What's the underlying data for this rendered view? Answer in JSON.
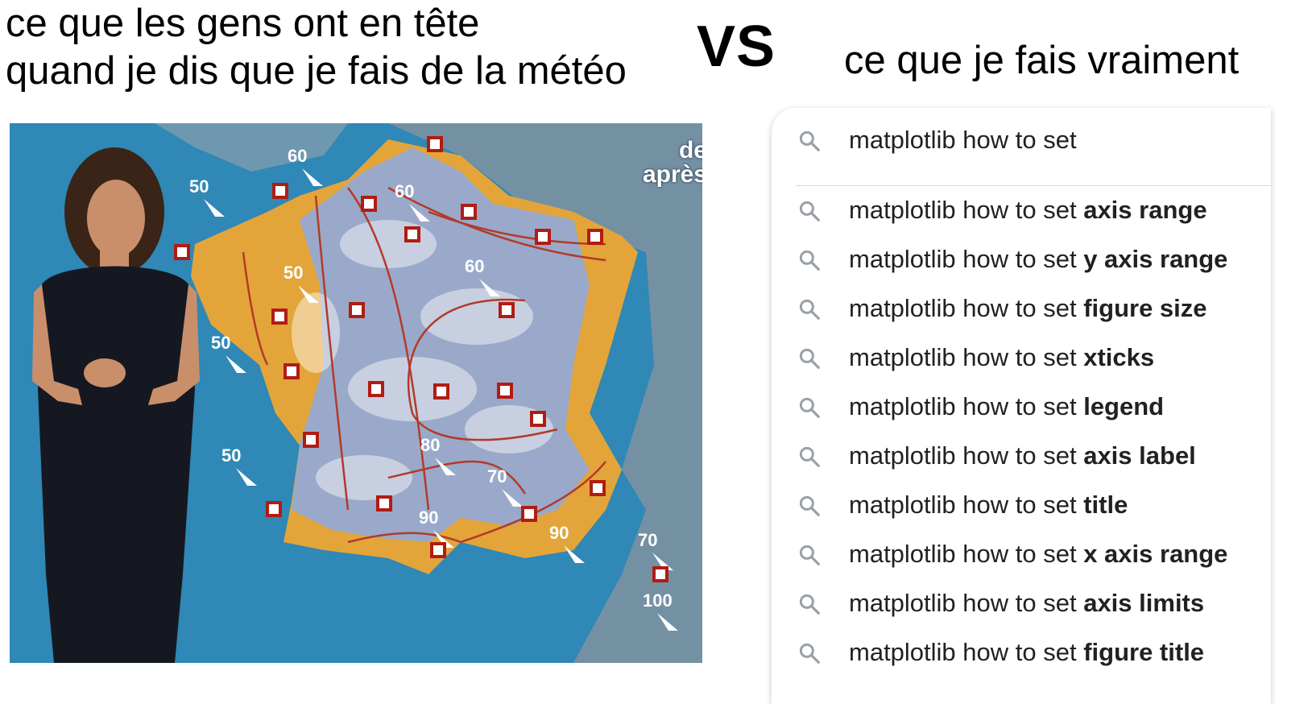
{
  "captions": {
    "left_line1": "ce que les gens ont en tête",
    "left_line2": "quand je dis que je fais de la météo",
    "vs": "VS",
    "right": "ce que je fais vraiment"
  },
  "weather_map": {
    "corner_line1": "de",
    "corner_line2": "après",
    "wind_speeds": [
      "60",
      "50",
      "60",
      "50",
      "60",
      "50",
      "50",
      "80",
      "70",
      "90",
      "90",
      "70",
      "100"
    ],
    "colors": {
      "sea": "#2f88b6",
      "land_warm": "#e3a53a",
      "land_cold": "#9aa9c9",
      "isoline": "#b33a2a"
    }
  },
  "search": {
    "query": "matplotlib how to set",
    "suggestions": [
      {
        "prefix": "matplotlib how to set ",
        "completion": "axis range"
      },
      {
        "prefix": "matplotlib how to set ",
        "completion": "y axis range"
      },
      {
        "prefix": "matplotlib how to set ",
        "completion": "figure size"
      },
      {
        "prefix": "matplotlib how to set ",
        "completion": "xticks"
      },
      {
        "prefix": "matplotlib how to set ",
        "completion": "legend"
      },
      {
        "prefix": "matplotlib how to set ",
        "completion": "axis label"
      },
      {
        "prefix": "matplotlib how to set ",
        "completion": "title"
      },
      {
        "prefix": "matplotlib how to set ",
        "completion": "x axis range"
      },
      {
        "prefix": "matplotlib how to set ",
        "completion": "axis limits"
      },
      {
        "prefix": "matplotlib how to set ",
        "completion": "figure title"
      }
    ],
    "icon": "search-icon"
  }
}
